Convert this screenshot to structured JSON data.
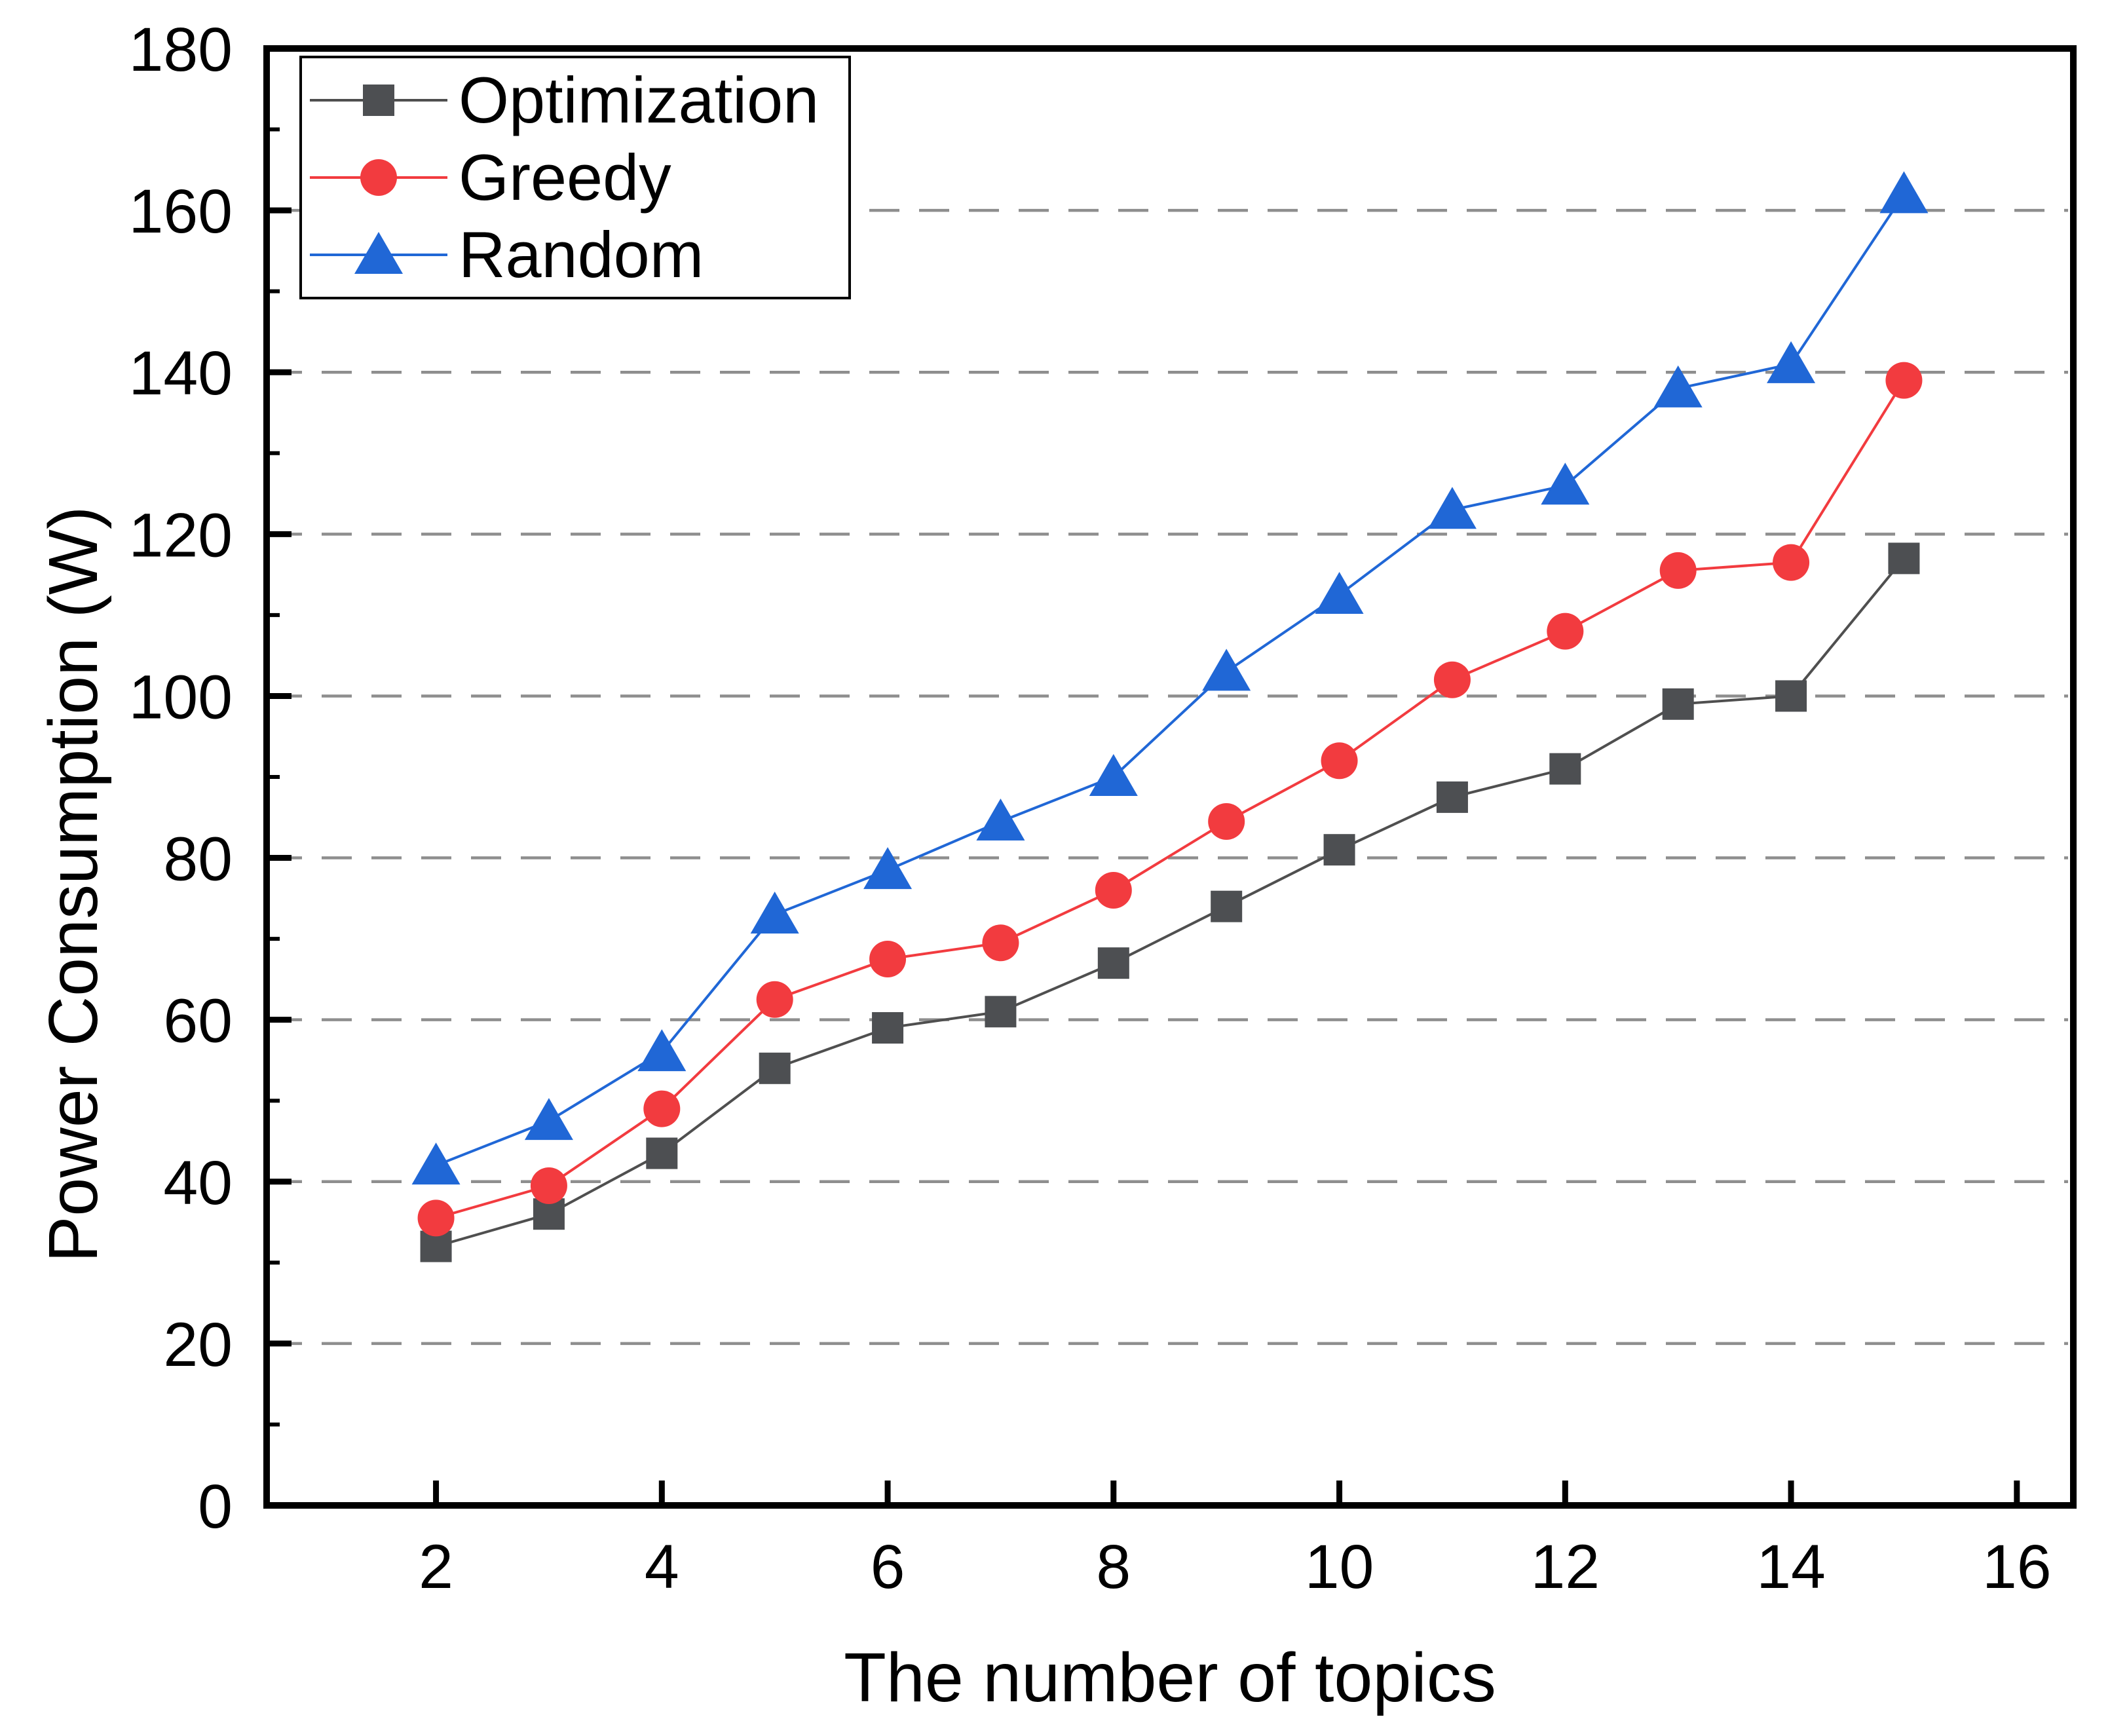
{
  "chart_data": {
    "type": "line",
    "title": "",
    "xlabel": "The number of topics",
    "ylabel": "Power Consumption (W)",
    "x": [
      2,
      3,
      4,
      5,
      6,
      7,
      8,
      9,
      10,
      11,
      12,
      13,
      14,
      15
    ],
    "series": [
      {
        "name": "Optimization",
        "marker": "square",
        "marker_color": "#4d4f52",
        "line_color": "#4f4f4f",
        "values": [
          32,
          36,
          43.5,
          54,
          59,
          61,
          67,
          74,
          81,
          87.5,
          91,
          99,
          100,
          117
        ]
      },
      {
        "name": "Greedy",
        "marker": "circle",
        "marker_color": "#f23b3f",
        "line_color": "#f23b3f",
        "values": [
          35.5,
          39.5,
          49,
          62.5,
          67.5,
          69.5,
          76,
          84.5,
          92,
          102,
          108,
          115.5,
          116.5,
          139
        ]
      },
      {
        "name": "Random",
        "marker": "triangle",
        "marker_color": "#2067d6",
        "line_color": "#2067d6",
        "values": [
          42,
          47.5,
          56,
          73,
          78.5,
          84.5,
          90,
          103,
          112.5,
          123,
          126,
          138,
          141,
          162
        ]
      }
    ],
    "xlim": [
      0.5,
      16.5
    ],
    "ylim": [
      0,
      180
    ],
    "xticks": [
      2,
      4,
      6,
      8,
      10,
      12,
      14,
      16
    ],
    "yticks": [
      0,
      20,
      40,
      60,
      80,
      100,
      120,
      140,
      160,
      180
    ],
    "y_minor_step": 10,
    "grid": {
      "horizontal": true,
      "vertical": false,
      "color": "#8e8e8e",
      "style": "dashed"
    },
    "legend": {
      "position": "top-left",
      "items": [
        "Optimization",
        "Greedy",
        "Random"
      ]
    },
    "frame_color": "#000000",
    "background_color": "#ffffff"
  }
}
